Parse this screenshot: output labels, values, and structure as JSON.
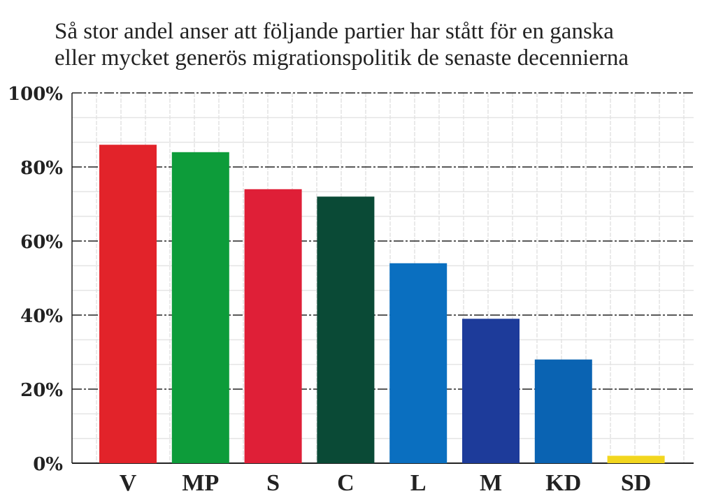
{
  "chart_data": {
    "type": "bar",
    "title": [
      "Så stor andel anser att följande partier har stått för en ganska",
      "eller mycket generös migrationspolitik de senaste decennierna"
    ],
    "xlabel": "",
    "ylabel": "",
    "ylim": [
      0,
      100
    ],
    "yticks": [
      "0%",
      "20%",
      "40%",
      "60%",
      "80%",
      "100%"
    ],
    "ytick_values": [
      0,
      20,
      40,
      60,
      80,
      100
    ],
    "categories": [
      "V",
      "MP",
      "S",
      "C",
      "L",
      "M",
      "KD",
      "SD"
    ],
    "values": [
      86,
      84,
      74,
      72,
      54,
      39,
      28,
      2
    ],
    "colors": [
      "#e2232a",
      "#0d9c3a",
      "#df1f37",
      "#0a4a36",
      "#0a6fc0",
      "#1d3b9a",
      "#0a63b2",
      "#f2d61e"
    ],
    "grid": true,
    "legend": "none"
  }
}
